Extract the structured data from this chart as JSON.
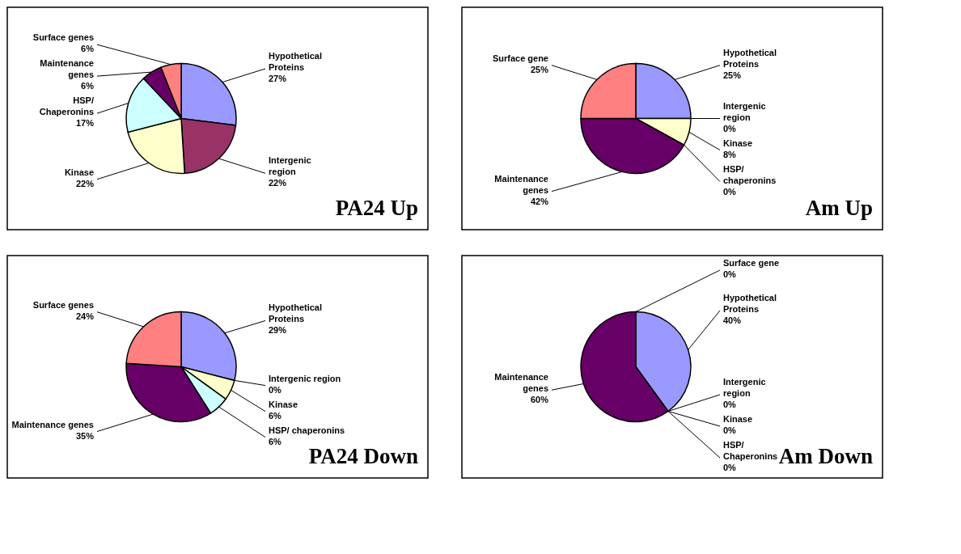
{
  "chart_data": [
    {
      "type": "pie",
      "title": "PA24 Up",
      "categories": [
        "Hypothetical\nProteins",
        "Intergenic\nregion",
        "Kinase",
        "HSP/\nChaperonins",
        "Maintenance\ngenes",
        "Surface genes"
      ],
      "values": [
        27,
        22,
        22,
        17,
        6,
        6
      ],
      "value_labels": [
        "27%",
        "22%",
        "22%",
        "17%",
        "6%",
        "6%"
      ],
      "colors": [
        "#9999ff",
        "#993366",
        "#ffffcc",
        "#ccffff",
        "#660066",
        "#ff8080"
      ]
    },
    {
      "type": "pie",
      "title": "Am Up",
      "categories": [
        "Hypothetical\nProteins",
        "Intergenic\nregion",
        "Kinase",
        "HSP/\nchaperonins",
        "Maintenance\ngenes",
        "Surface gene"
      ],
      "values": [
        25,
        0,
        8,
        0,
        42,
        25
      ],
      "value_labels": [
        "25%",
        "0%",
        "8%",
        "0%",
        "42%",
        "25%"
      ],
      "colors": [
        "#9999ff",
        "#993366",
        "#ffffcc",
        "#ccffff",
        "#660066",
        "#ff8080"
      ]
    },
    {
      "type": "pie",
      "title": "PA24 Down",
      "categories": [
        "Hypothetical\nProteins",
        "Intergenic region",
        "Kinase",
        "HSP/ chaperonins",
        "Maintenance genes",
        "Surface genes"
      ],
      "values": [
        29,
        0,
        6,
        6,
        35,
        24
      ],
      "value_labels": [
        "29%",
        "0%",
        "6%",
        "6%",
        "35%",
        "24%"
      ],
      "colors": [
        "#9999ff",
        "#993366",
        "#ffffcc",
        "#ccffff",
        "#660066",
        "#ff8080"
      ]
    },
    {
      "type": "pie",
      "title": "Am Down",
      "categories": [
        "Hypothetical\nProteins",
        "Intergenic\nregion",
        "Kinase",
        "HSP/\nChaperonins",
        "Maintenance\ngenes",
        "Surface gene"
      ],
      "values": [
        40,
        0,
        0,
        0,
        60,
        0
      ],
      "value_labels": [
        "40%",
        "0%",
        "0%",
        "0%",
        "60%",
        "0%"
      ],
      "colors": [
        "#9999ff",
        "#993366",
        "#ffffcc",
        "#ccffff",
        "#660066",
        "#ff8080"
      ]
    }
  ]
}
